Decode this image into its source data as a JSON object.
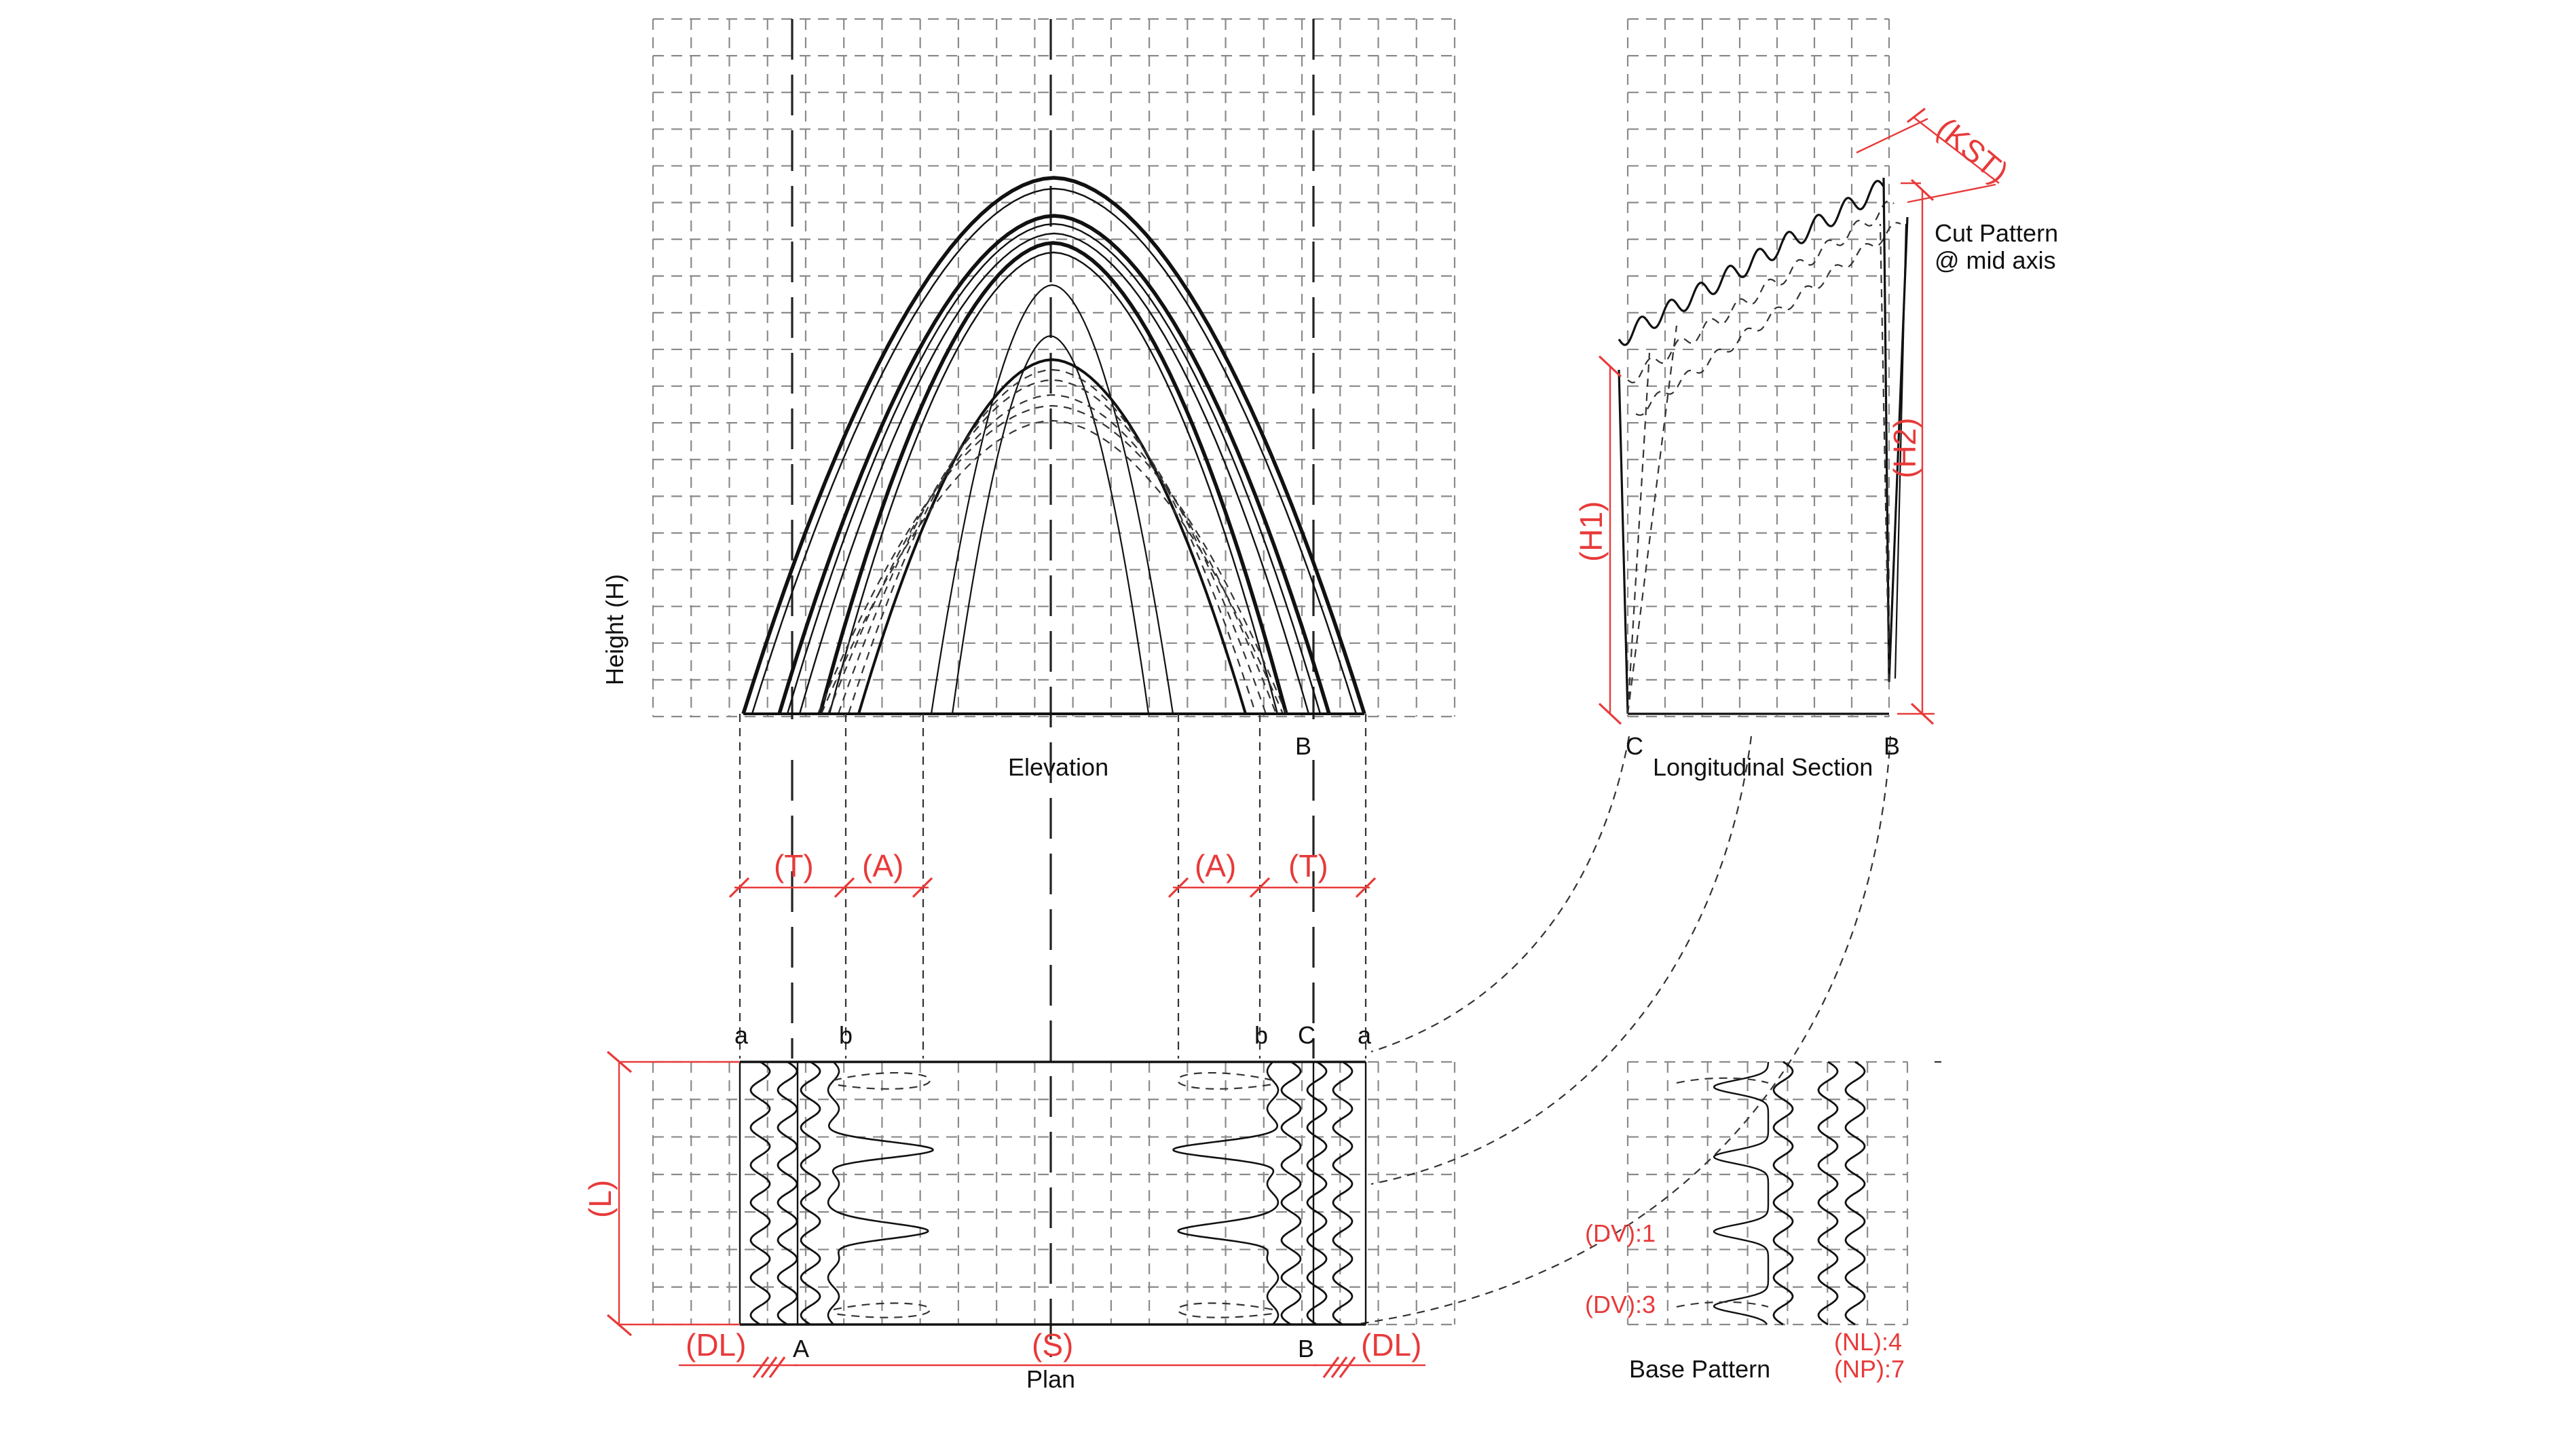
{
  "views": {
    "elevation": "Elevation",
    "longitudinal_section": "Longitudinal Section",
    "plan": "Plan",
    "base_pattern": "Base Pattern"
  },
  "axis_label": "Height (H)",
  "cut_pattern": {
    "line1": "Cut Pattern",
    "line2": "@ mid axis"
  },
  "points": {
    "a": "a",
    "b": "b",
    "A": "A",
    "B": "B",
    "C": "C"
  },
  "dimensions": {
    "T": "(T)",
    "A": "(A)",
    "S": "(S)",
    "DL": "(DL)",
    "L": "(L)",
    "H1": "(H1)",
    "H2": "(H2)",
    "KST": "(KST)"
  },
  "pattern_params": {
    "dv1": "(DV):1",
    "dv3": "(DV):3",
    "nl": "(NL):4",
    "np": "(NP):7"
  },
  "colors": {
    "annotation": "#e83a3a",
    "linework": "#111111",
    "grid": "#8a8a8a"
  }
}
